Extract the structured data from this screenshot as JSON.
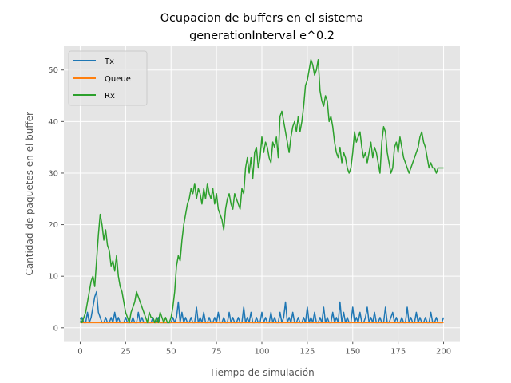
{
  "chart_data": {
    "type": "line",
    "title": "Ocupacion de buffers en el sistema",
    "subtitle": "generationInterval e^0.2",
    "xlabel": "Tiempo de simulación",
    "ylabel": "Cantidad de paquetes en el buffer",
    "xlim": [
      -9,
      209
    ],
    "ylim": [
      -2.6,
      54.6
    ],
    "xticks": [
      0,
      25,
      50,
      75,
      100,
      125,
      150,
      175,
      200
    ],
    "yticks": [
      0,
      10,
      20,
      30,
      40,
      50
    ],
    "grid": true,
    "legend_position": "top-left",
    "series": [
      {
        "name": "Tx",
        "color": "#1f77b4",
        "x": [
          0,
          1,
          2,
          3,
          4,
          5,
          6,
          7,
          8,
          9,
          10,
          11,
          12,
          13,
          14,
          15,
          16,
          17,
          18,
          19,
          20,
          21,
          22,
          23,
          24,
          25,
          26,
          27,
          28,
          29,
          30,
          31,
          32,
          33,
          34,
          35,
          36,
          37,
          38,
          39,
          40,
          41,
          42,
          43,
          44,
          45,
          46,
          47,
          48,
          49,
          50,
          51,
          52,
          53,
          54,
          55,
          56,
          57,
          58,
          59,
          60,
          61,
          62,
          63,
          64,
          65,
          66,
          67,
          68,
          69,
          70,
          71,
          72,
          73,
          74,
          75,
          76,
          77,
          78,
          79,
          80,
          81,
          82,
          83,
          84,
          85,
          86,
          87,
          88,
          89,
          90,
          91,
          92,
          93,
          94,
          95,
          96,
          97,
          98,
          99,
          100,
          101,
          102,
          103,
          104,
          105,
          106,
          107,
          108,
          109,
          110,
          111,
          112,
          113,
          114,
          115,
          116,
          117,
          118,
          119,
          120,
          121,
          122,
          123,
          124,
          125,
          126,
          127,
          128,
          129,
          130,
          131,
          132,
          133,
          134,
          135,
          136,
          137,
          138,
          139,
          140,
          141,
          142,
          143,
          144,
          145,
          146,
          147,
          148,
          149,
          150,
          151,
          152,
          153,
          154,
          155,
          156,
          157,
          158,
          159,
          160,
          161,
          162,
          163,
          164,
          165,
          166,
          167,
          168,
          169,
          170,
          171,
          172,
          173,
          174,
          175,
          176,
          177,
          178,
          179,
          180,
          181,
          182,
          183,
          184,
          185,
          186,
          187,
          188,
          189,
          190,
          191,
          192,
          193,
          194,
          195,
          196,
          197,
          198,
          199,
          200
        ],
        "values": [
          1,
          2,
          1,
          1,
          3,
          1,
          2,
          4,
          6,
          7,
          3,
          2,
          1,
          1,
          2,
          1,
          1,
          2,
          1,
          3,
          1,
          2,
          1,
          1,
          1,
          2,
          1,
          1,
          1,
          2,
          1,
          1,
          3,
          1,
          2,
          1,
          1,
          1,
          1,
          1,
          2,
          1,
          1,
          2,
          1,
          1,
          1,
          1,
          1,
          1,
          1,
          2,
          1,
          2,
          5,
          1,
          3,
          1,
          2,
          1,
          1,
          2,
          1,
          1,
          4,
          1,
          2,
          1,
          3,
          1,
          1,
          2,
          1,
          1,
          2,
          1,
          3,
          1,
          1,
          2,
          1,
          1,
          3,
          1,
          2,
          1,
          1,
          2,
          1,
          1,
          4,
          1,
          2,
          1,
          3,
          1,
          1,
          2,
          1,
          1,
          3,
          1,
          2,
          1,
          1,
          3,
          1,
          2,
          1,
          1,
          3,
          1,
          2,
          5,
          1,
          2,
          1,
          3,
          1,
          1,
          2,
          1,
          1,
          2,
          1,
          4,
          1,
          2,
          1,
          3,
          1,
          1,
          2,
          1,
          4,
          1,
          2,
          1,
          1,
          3,
          1,
          2,
          1,
          5,
          1,
          3,
          1,
          2,
          1,
          1,
          4,
          1,
          2,
          1,
          3,
          1,
          1,
          2,
          4,
          1,
          2,
          1,
          3,
          1,
          1,
          2,
          1,
          1,
          4,
          1,
          1,
          2,
          3,
          1,
          2,
          1,
          1,
          2,
          1,
          1,
          4,
          1,
          2,
          1,
          1,
          3,
          1,
          2,
          1,
          1,
          2,
          1,
          1,
          3,
          1,
          1,
          2,
          1,
          1,
          1,
          2
        ]
      },
      {
        "name": "Queue",
        "color": "#ff7f0e",
        "x": [
          0,
          200
        ],
        "values": [
          1,
          1
        ]
      },
      {
        "name": "Rx",
        "color": "#2ca02c",
        "x": [
          0,
          1,
          2,
          3,
          4,
          5,
          6,
          7,
          8,
          9,
          10,
          11,
          12,
          13,
          14,
          15,
          16,
          17,
          18,
          19,
          20,
          21,
          22,
          23,
          24,
          25,
          26,
          27,
          28,
          29,
          30,
          31,
          32,
          33,
          34,
          35,
          36,
          37,
          38,
          39,
          40,
          41,
          42,
          43,
          44,
          45,
          46,
          47,
          48,
          49,
          50,
          51,
          52,
          53,
          54,
          55,
          56,
          57,
          58,
          59,
          60,
          61,
          62,
          63,
          64,
          65,
          66,
          67,
          68,
          69,
          70,
          71,
          72,
          73,
          74,
          75,
          76,
          77,
          78,
          79,
          80,
          81,
          82,
          83,
          84,
          85,
          86,
          87,
          88,
          89,
          90,
          91,
          92,
          93,
          94,
          95,
          96,
          97,
          98,
          99,
          100,
          101,
          102,
          103,
          104,
          105,
          106,
          107,
          108,
          109,
          110,
          111,
          112,
          113,
          114,
          115,
          116,
          117,
          118,
          119,
          120,
          121,
          122,
          123,
          124,
          125,
          126,
          127,
          128,
          129,
          130,
          131,
          132,
          133,
          134,
          135,
          136,
          137,
          138,
          139,
          140,
          141,
          142,
          143,
          144,
          145,
          146,
          147,
          148,
          149,
          150,
          151,
          152,
          153,
          154,
          155,
          156,
          157,
          158,
          159,
          160,
          161,
          162,
          163,
          164,
          165,
          166,
          167,
          168,
          169,
          170,
          171,
          172,
          173,
          174,
          175,
          176,
          177,
          178,
          179,
          180,
          181,
          182,
          183,
          184,
          185,
          186,
          187,
          188,
          189,
          190,
          191,
          192,
          193,
          194,
          195,
          196,
          197,
          198,
          199,
          200
        ],
        "values": [
          2,
          1,
          2,
          3,
          5,
          7,
          9,
          10,
          8,
          13,
          18,
          22,
          20,
          17,
          19,
          16,
          15,
          12,
          13,
          11,
          14,
          10,
          8,
          7,
          5,
          3,
          2,
          1,
          3,
          4,
          5,
          7,
          6,
          5,
          4,
          3,
          2,
          1,
          3,
          2,
          2,
          1,
          2,
          1,
          3,
          2,
          1,
          2,
          1,
          1,
          2,
          4,
          7,
          12,
          14,
          13,
          17,
          20,
          22,
          24,
          25,
          27,
          26,
          28,
          25,
          27,
          26,
          24,
          27,
          25,
          28,
          26,
          25,
          27,
          24,
          26,
          23,
          22,
          21,
          19,
          23,
          25,
          26,
          24,
          23,
          26,
          25,
          24,
          23,
          27,
          26,
          31,
          33,
          30,
          33,
          29,
          34,
          35,
          31,
          33,
          37,
          34,
          36,
          35,
          33,
          32,
          36,
          35,
          37,
          33,
          41,
          42,
          40,
          38,
          36,
          34,
          37,
          39,
          40,
          38,
          41,
          38,
          40,
          43,
          47,
          48,
          50,
          52,
          51,
          49,
          50,
          52,
          46,
          44,
          43,
          45,
          44,
          40,
          41,
          39,
          36,
          34,
          33,
          35,
          32,
          34,
          33,
          31,
          30,
          31,
          34,
          38,
          36,
          37,
          38,
          35,
          33,
          34,
          32,
          34,
          36,
          33,
          35,
          34,
          32,
          30,
          36,
          39,
          38,
          34,
          32,
          30,
          31,
          35,
          36,
          34,
          37,
          35,
          33,
          32,
          31,
          30,
          31,
          32,
          33,
          34,
          35,
          37,
          38,
          36,
          35,
          33,
          31,
          32,
          31,
          31,
          30,
          31,
          31,
          31,
          31
        ]
      }
    ]
  }
}
